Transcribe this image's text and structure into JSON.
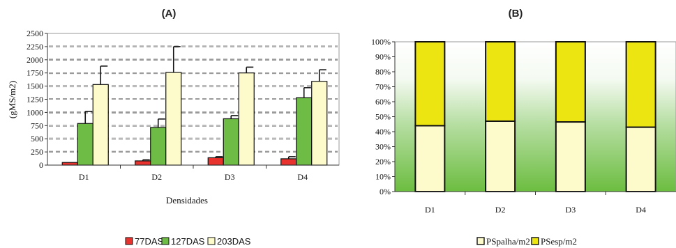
{
  "chart_data": [
    {
      "panel": "(A)",
      "type": "bar",
      "categories": [
        "D1",
        "D2",
        "D3",
        "D4"
      ],
      "series": [
        {
          "name": "77DAS",
          "values": [
            50,
            80,
            140,
            120
          ],
          "errors": [
            0,
            20,
            20,
            40
          ],
          "color": "#e8322d"
        },
        {
          "name": "127DAS",
          "values": [
            790,
            715,
            880,
            1280
          ],
          "errors": [
            230,
            160,
            60,
            190
          ],
          "color": "#6ebb45"
        },
        {
          "name": "203DAS",
          "values": [
            1530,
            1760,
            1750,
            1590
          ],
          "errors": [
            350,
            490,
            110,
            220
          ],
          "color": "#fdfacc"
        }
      ],
      "yticks": [
        "0",
        "250",
        "500",
        "750",
        "1000",
        "1250",
        "1500",
        "1750",
        "2000",
        "2250",
        "2500"
      ],
      "ylim": [
        0,
        2500
      ],
      "xlabel": "Densidades",
      "ylabel": "(gMS/m2)",
      "grid": true,
      "legend": "bottom"
    },
    {
      "panel": "(B)",
      "type": "bar",
      "stacked_percent": true,
      "categories": [
        "D1",
        "D2",
        "D3",
        "D4"
      ],
      "series": [
        {
          "name": "PSpalha/m2",
          "values": [
            44,
            47,
            46.5,
            43
          ],
          "color": "#fdfacc"
        },
        {
          "name": "PSesp/m2",
          "values": [
            56,
            53,
            53.5,
            57
          ],
          "color": "#ece512"
        }
      ],
      "yticks": [
        "0%",
        "10%",
        "20%",
        "30%",
        "40%",
        "50%",
        "60%",
        "70%",
        "80%",
        "90%",
        "100%"
      ],
      "ylim": [
        0,
        100
      ],
      "xlabel": "",
      "ylabel": "",
      "legend": "bottom"
    }
  ]
}
